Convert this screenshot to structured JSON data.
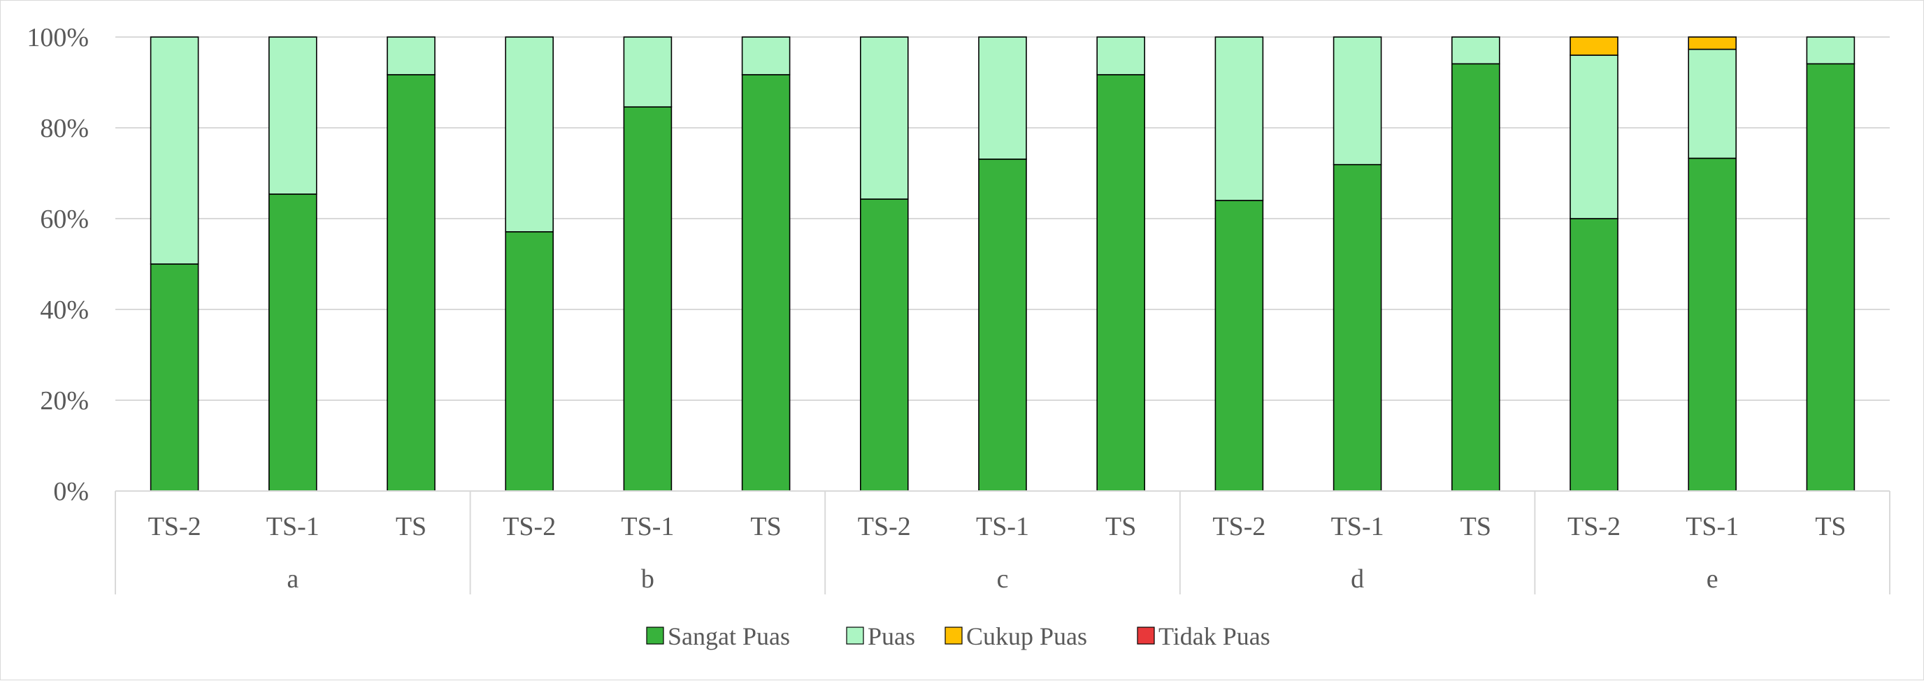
{
  "chart_data": {
    "type": "bar",
    "stacked": true,
    "percent": true,
    "title": "",
    "xlabel": "",
    "ylabel": "",
    "ylim": [
      0,
      100
    ],
    "yticks": [
      "0%",
      "20%",
      "40%",
      "60%",
      "80%",
      "100%"
    ],
    "yticks_values": [
      0,
      20,
      40,
      60,
      80,
      100
    ],
    "grid": true,
    "legend_position": "bottom",
    "groups": [
      {
        "label": "a",
        "categories": [
          "TS-2",
          "TS-1",
          "TS"
        ]
      },
      {
        "label": "b",
        "categories": [
          "TS-2",
          "TS-1",
          "TS"
        ]
      },
      {
        "label": "c",
        "categories": [
          "TS-2",
          "TS-1",
          "TS"
        ]
      },
      {
        "label": "d",
        "categories": [
          "TS-2",
          "TS-1",
          "TS"
        ]
      },
      {
        "label": "e",
        "categories": [
          "TS-2",
          "TS-1",
          "TS"
        ]
      }
    ],
    "series": [
      {
        "name": "Sangat Puas",
        "color": "#38b23c",
        "values": [
          50,
          65.4,
          91.7,
          57.1,
          84.6,
          91.7,
          64.3,
          73.1,
          91.7,
          64,
          71.9,
          94.1,
          60,
          73.3,
          94.1
        ]
      },
      {
        "name": "Puas",
        "color": "#acf5c3",
        "values": [
          50,
          34.6,
          8.3,
          42.9,
          15.4,
          8.3,
          35.7,
          26.9,
          8.3,
          36,
          28.1,
          5.9,
          36,
          24,
          5.9
        ]
      },
      {
        "name": "Cukup Puas",
        "color": "#ffc000",
        "values": [
          0,
          0,
          0,
          0,
          0,
          0,
          0,
          0,
          0,
          0,
          0,
          0,
          4,
          2.7,
          0
        ]
      },
      {
        "name": "Tidak Puas",
        "color": "#e8383a",
        "values": [
          0,
          0,
          0,
          0,
          0,
          0,
          0,
          0,
          0,
          0,
          0,
          0,
          0,
          0,
          0
        ]
      }
    ]
  }
}
